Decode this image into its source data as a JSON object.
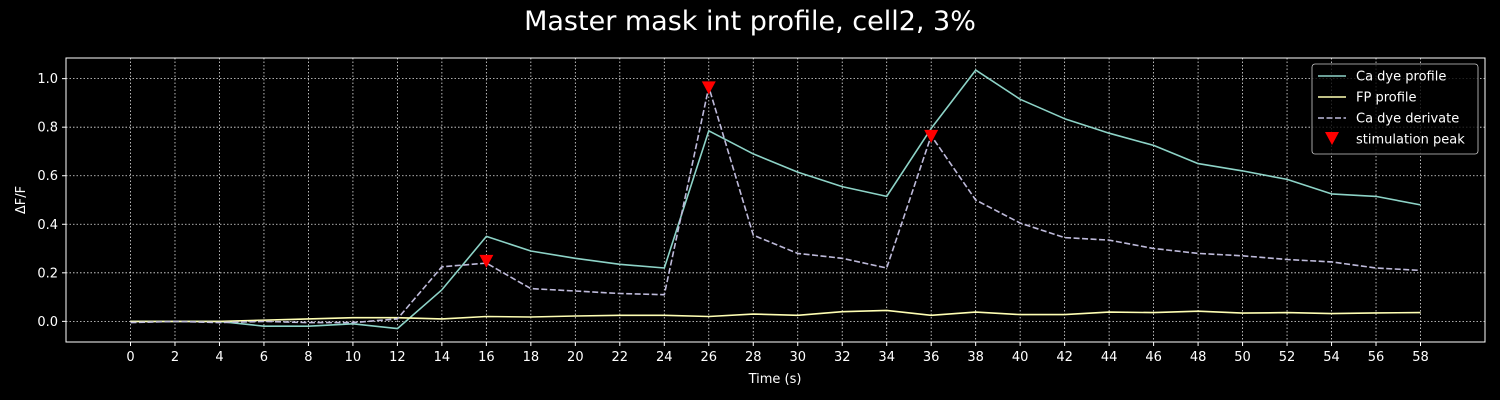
{
  "chart_data": {
    "type": "line",
    "title": "Master mask int profile, cell2, 3%",
    "xlabel": "Time (s)",
    "ylabel": "ΔF/F",
    "xlim": [
      -2.9,
      60.9
    ],
    "ylim": [
      -0.085,
      1.085
    ],
    "xticks": [
      0,
      2,
      4,
      6,
      8,
      10,
      12,
      14,
      16,
      18,
      20,
      22,
      24,
      26,
      28,
      30,
      32,
      34,
      36,
      38,
      40,
      42,
      44,
      46,
      48,
      50,
      52,
      54,
      56,
      58
    ],
    "yticks": [
      0.0,
      0.2,
      0.4,
      0.6,
      0.8,
      1.0
    ],
    "grid": true,
    "legend_position": "top-right",
    "x": [
      0,
      2,
      4,
      6,
      8,
      10,
      12,
      14,
      16,
      18,
      20,
      22,
      24,
      26,
      28,
      30,
      32,
      34,
      36,
      38,
      40,
      42,
      44,
      46,
      48,
      50,
      52,
      54,
      56,
      58
    ],
    "series": [
      {
        "name": "Ca dye profile",
        "color": "#8dd3c7",
        "style": "solid",
        "values": [
          0.0,
          0.0,
          0.0,
          -0.02,
          -0.02,
          -0.01,
          -0.03,
          0.13,
          0.35,
          0.29,
          0.26,
          0.235,
          0.22,
          0.785,
          0.69,
          0.615,
          0.555,
          0.515,
          0.795,
          1.035,
          0.915,
          0.835,
          0.775,
          0.725,
          0.65,
          0.62,
          0.585,
          0.525,
          0.515,
          0.48
        ]
      },
      {
        "name": "FP profile",
        "color": "#ffffb3",
        "style": "solid",
        "values": [
          0.0,
          0.0,
          0.0,
          0.005,
          0.01,
          0.015,
          0.015,
          0.01,
          0.02,
          0.018,
          0.022,
          0.025,
          0.025,
          0.02,
          0.03,
          0.025,
          0.04,
          0.045,
          0.025,
          0.038,
          0.028,
          0.028,
          0.038,
          0.036,
          0.042,
          0.034,
          0.036,
          0.032,
          0.035,
          0.036
        ]
      },
      {
        "name": "Ca dye derivate",
        "color": "#bebada",
        "style": "dashed",
        "values": [
          -0.005,
          0.0,
          -0.005,
          0.0,
          -0.005,
          -0.005,
          0.01,
          0.225,
          0.24,
          0.135,
          0.125,
          0.115,
          0.11,
          0.965,
          0.355,
          0.28,
          0.26,
          0.22,
          0.765,
          0.5,
          0.405,
          0.345,
          0.335,
          0.3,
          0.28,
          0.27,
          0.255,
          0.245,
          0.22,
          0.21
        ]
      }
    ],
    "markers": {
      "name": "stimulation peak",
      "color": "#ff0000",
      "shape": "triangle-down",
      "points": [
        [
          16,
          0.245
        ],
        [
          26,
          0.96
        ],
        [
          36,
          0.76
        ]
      ]
    }
  }
}
